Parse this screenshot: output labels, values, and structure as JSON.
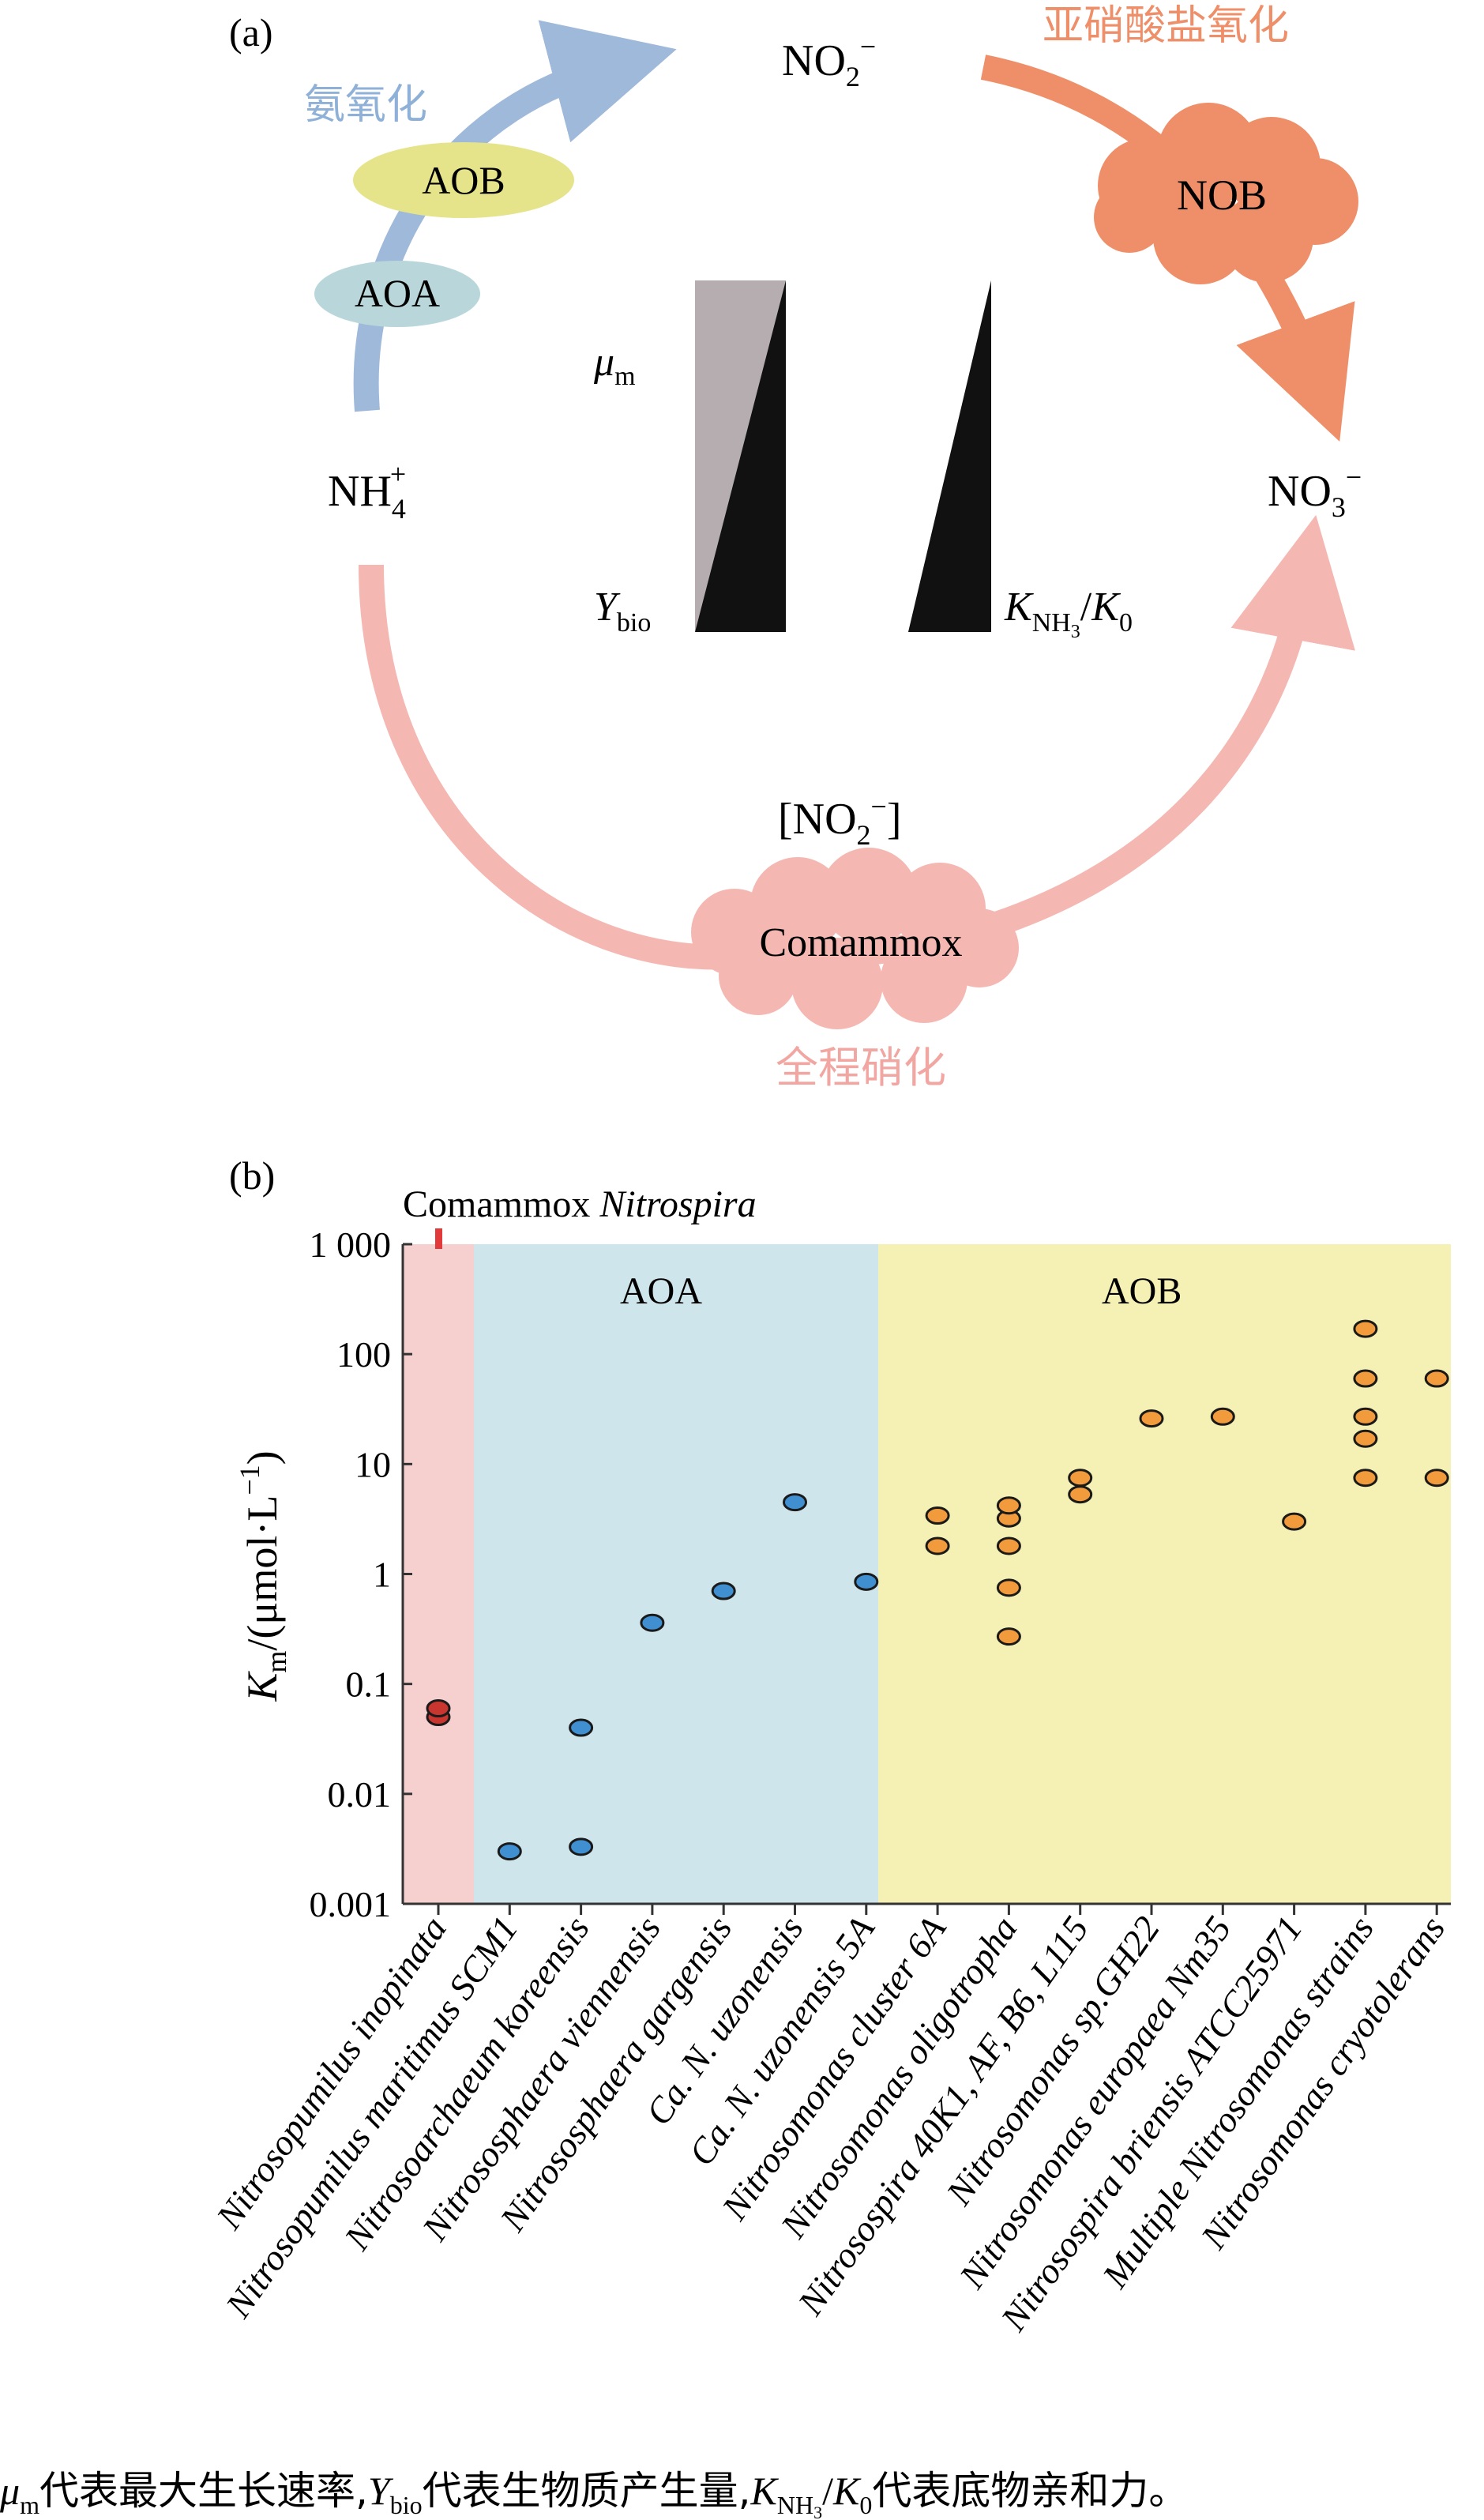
{
  "panel_a": {
    "label": "(a)",
    "nodes": {
      "nh4": {
        "base": "NH",
        "sub": "4",
        "sup": "+"
      },
      "no2": {
        "base": "NO",
        "sub": "2",
        "sup": "−"
      },
      "no3": {
        "base": "NO",
        "sub": "3",
        "sup": "−"
      }
    },
    "process_labels": {
      "ammonia_oxidation": "氨氧化",
      "nitrite_oxidation": "亚硝酸盐氧化",
      "comammox_process": "全程硝化"
    },
    "organisms": {
      "aob": "AOB",
      "aoa": "AOA",
      "nob": "NOB",
      "comammox": "Comammox"
    },
    "nitrite_bracket": {
      "open": "[NO",
      "sub": "2",
      "sup": "−",
      "close": "]"
    },
    "wedge_labels": {
      "mu": {
        "base": "μ",
        "sub": "m"
      },
      "ybio": {
        "base": "Y",
        "sub": "bio"
      },
      "k_ratio": {
        "k1": "K",
        "k1_sub": "NH",
        "k1_subsub": "3",
        "slash": "/",
        "k2": "K",
        "k2_sub": "0"
      }
    },
    "colors": {
      "ammonia_arrow": "#9fb9da",
      "nob_orange": "#ef8f69",
      "comammox_pink": "#f5b7b2",
      "aob_fill": "#e6e48a",
      "aoa_fill": "#b9d6da",
      "wedge_dark": "#111111",
      "wedge_grey": "#b5adb0"
    }
  },
  "panel_b": {
    "label": "(b)",
    "comammox_label": {
      "prefix": "Comammox ",
      "italic": "Nitrospira"
    },
    "group_labels": {
      "aoa": "AOA",
      "aob": "AOB"
    },
    "y_axis_label": {
      "k": "K",
      "sub": "m",
      "rest": "/(μmol·L",
      "sup": "−1",
      "close": ")"
    },
    "y_tick_labels": [
      "1 000",
      "100",
      "10",
      "1",
      "0.1",
      "0.01",
      "0.001"
    ],
    "chart_data": {
      "type": "scatter",
      "y_scale": "log",
      "ylim": [
        0.001,
        1000
      ],
      "ylabel": "Km/(μmol·L−1)",
      "groups": [
        {
          "name": "Comammox Nitrospira",
          "color": "#c9352f",
          "band": "#f6cfcf",
          "categories": [
            0
          ]
        },
        {
          "name": "AOA",
          "color": "#3f8fd1",
          "band": "#cfe5ec",
          "categories": [
            1,
            2,
            3,
            4,
            5,
            6
          ]
        },
        {
          "name": "AOB",
          "color": "#f19b3c",
          "band": "#f5f0b4",
          "categories": [
            7,
            8,
            9,
            10,
            11,
            12,
            13,
            14
          ]
        }
      ],
      "categories": [
        {
          "name": "Nitrosopumilus inopinata",
          "values": [
            0.05,
            0.06
          ]
        },
        {
          "name": "Nitrosopumilus maritimus SCM1",
          "values": [
            0.003
          ]
        },
        {
          "name": "Nitrosoarchaeum koreensis",
          "values": [
            0.0033,
            0.04
          ]
        },
        {
          "name": "Nitrososphaera viennensis",
          "values": [
            0.36
          ]
        },
        {
          "name": "Nitrososphaera gargensis",
          "values": [
            0.7
          ]
        },
        {
          "name": "Ca. N. uzonensis",
          "values": [
            4.5
          ]
        },
        {
          "name": "Ca. N. uzonensis 5A",
          "values": [
            0.85
          ]
        },
        {
          "name": "Nitrosomonas cluster 6A",
          "values": [
            1.8,
            3.4
          ]
        },
        {
          "name": "Nitrosomonas oligotropha",
          "values": [
            0.27,
            0.75,
            1.8,
            3.2,
            4.2
          ]
        },
        {
          "name": "Nitrosospira 40K1, AF, B6, L115",
          "values": [
            5.3,
            7.5
          ]
        },
        {
          "name": "Nitrosomonas sp.GH22",
          "values": [
            26
          ]
        },
        {
          "name": "Nitrosomonas europaea Nm35",
          "values": [
            27
          ]
        },
        {
          "name": "Nitrosospira briensis ATCC25971",
          "values": [
            3
          ]
        },
        {
          "name": "Multiple Nitrosomonas strains",
          "values": [
            7.5,
            17,
            27,
            60,
            170
          ]
        },
        {
          "name": "Nitrosomonas cryotolerans",
          "values": [
            7.5,
            60
          ]
        }
      ]
    }
  },
  "caption": {
    "mu": "μ",
    "mu_sub": "m",
    "t1": "代表最大生长速率,",
    "y": "Y",
    "y_sub": "bio",
    "t2": "代表生物质产生量,",
    "k1": "K",
    "k1_sub": "NH",
    "k1_subsub": "3",
    "slash": "/",
    "k2": "K",
    "k2_sub": "0",
    "t3": "代表底物亲和力。"
  }
}
